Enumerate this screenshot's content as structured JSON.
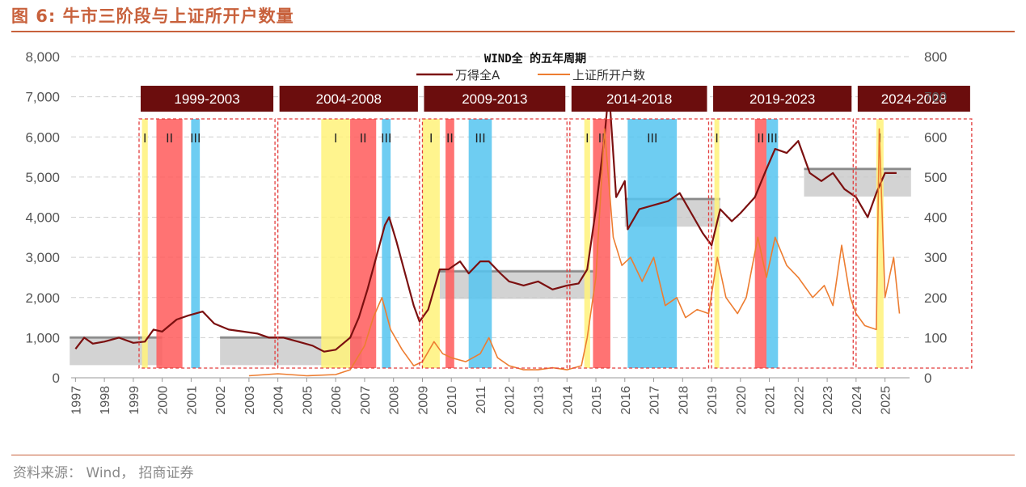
{
  "header": {
    "title": "图 6: 牛市三阶段与上证所开户数量",
    "source": "资料来源： Wind， 招商证券"
  },
  "chart_data": {
    "type": "line",
    "title": "WIND全 的五年周期",
    "y_left": {
      "ylim": [
        0,
        8000
      ],
      "ticks": [
        "0",
        "1,000",
        "2,000",
        "3,000",
        "4,000",
        "5,000",
        "6,000",
        "7,000",
        "8,000"
      ]
    },
    "y_right": {
      "ylim": [
        0,
        800
      ],
      "ticks": [
        "0",
        "100",
        "200",
        "300",
        "400",
        "500",
        "600",
        "700",
        "800"
      ]
    },
    "x_ticks": [
      "1997",
      "1998",
      "1999",
      "2000",
      "2001",
      "2002",
      "2003",
      "2004",
      "2005",
      "2006",
      "2007",
      "2008",
      "2009",
      "2010",
      "2011",
      "2012",
      "2013",
      "2014",
      "2015",
      "2016",
      "2017",
      "2018",
      "2019",
      "2020",
      "2021",
      "2022",
      "2023",
      "2024",
      "2025"
    ],
    "legend_position": "top-center",
    "series": [
      {
        "name": "万得全A",
        "axis": "left",
        "color": "#7b1010",
        "points": [
          [
            1997.0,
            720
          ],
          [
            1997.3,
            1000
          ],
          [
            1997.6,
            850
          ],
          [
            1998.0,
            900
          ],
          [
            1998.5,
            1000
          ],
          [
            1999.0,
            870
          ],
          [
            1999.4,
            900
          ],
          [
            1999.7,
            1200
          ],
          [
            2000.0,
            1150
          ],
          [
            2000.5,
            1450
          ],
          [
            2000.9,
            1550
          ],
          [
            2001.4,
            1650
          ],
          [
            2001.8,
            1350
          ],
          [
            2002.3,
            1200
          ],
          [
            2002.8,
            1150
          ],
          [
            2003.3,
            1100
          ],
          [
            2003.7,
            1000
          ],
          [
            2004.2,
            1000
          ],
          [
            2004.7,
            900
          ],
          [
            2005.2,
            800
          ],
          [
            2005.6,
            650
          ],
          [
            2006.0,
            700
          ],
          [
            2006.5,
            1000
          ],
          [
            2006.8,
            1500
          ],
          [
            2007.1,
            2200
          ],
          [
            2007.4,
            3000
          ],
          [
            2007.7,
            3800
          ],
          [
            2007.85,
            4000
          ],
          [
            2008.1,
            3400
          ],
          [
            2008.4,
            2600
          ],
          [
            2008.7,
            1800
          ],
          [
            2008.9,
            1400
          ],
          [
            2009.2,
            1700
          ],
          [
            2009.6,
            2700
          ],
          [
            2009.9,
            2700
          ],
          [
            2010.3,
            2900
          ],
          [
            2010.6,
            2600
          ],
          [
            2011.0,
            2900
          ],
          [
            2011.3,
            2900
          ],
          [
            2011.7,
            2600
          ],
          [
            2012.0,
            2400
          ],
          [
            2012.5,
            2300
          ],
          [
            2013.0,
            2400
          ],
          [
            2013.5,
            2200
          ],
          [
            2014.0,
            2300
          ],
          [
            2014.4,
            2350
          ],
          [
            2014.7,
            2700
          ],
          [
            2015.0,
            4200
          ],
          [
            2015.3,
            6000
          ],
          [
            2015.45,
            7200
          ],
          [
            2015.7,
            4500
          ],
          [
            2016.0,
            4900
          ],
          [
            2016.1,
            3700
          ],
          [
            2016.5,
            4200
          ],
          [
            2017.0,
            4300
          ],
          [
            2017.5,
            4400
          ],
          [
            2017.9,
            4600
          ],
          [
            2018.3,
            4100
          ],
          [
            2018.7,
            3600
          ],
          [
            2019.0,
            3300
          ],
          [
            2019.3,
            4200
          ],
          [
            2019.7,
            3900
          ],
          [
            2020.0,
            4100
          ],
          [
            2020.5,
            4500
          ],
          [
            2020.9,
            5200
          ],
          [
            2021.2,
            5700
          ],
          [
            2021.6,
            5600
          ],
          [
            2022.0,
            5900
          ],
          [
            2022.4,
            5100
          ],
          [
            2022.8,
            4900
          ],
          [
            2023.2,
            5100
          ],
          [
            2023.6,
            4700
          ],
          [
            2024.0,
            4500
          ],
          [
            2024.4,
            4000
          ],
          [
            2024.7,
            4600
          ],
          [
            2025.0,
            5100
          ],
          [
            2025.4,
            5100
          ]
        ]
      },
      {
        "name": "上证所开户数",
        "axis": "right",
        "color": "#ed7d31",
        "points": [
          [
            2003.0,
            5
          ],
          [
            2004.0,
            10
          ],
          [
            2005.0,
            5
          ],
          [
            2006.0,
            8
          ],
          [
            2006.5,
            20
          ],
          [
            2007.0,
            80
          ],
          [
            2007.3,
            150
          ],
          [
            2007.6,
            200
          ],
          [
            2007.9,
            120
          ],
          [
            2008.3,
            70
          ],
          [
            2008.7,
            30
          ],
          [
            2009.0,
            40
          ],
          [
            2009.4,
            90
          ],
          [
            2009.7,
            60
          ],
          [
            2010.0,
            50
          ],
          [
            2010.5,
            40
          ],
          [
            2011.0,
            60
          ],
          [
            2011.3,
            100
          ],
          [
            2011.6,
            50
          ],
          [
            2012.0,
            30
          ],
          [
            2012.5,
            20
          ],
          [
            2013.0,
            20
          ],
          [
            2013.5,
            25
          ],
          [
            2014.0,
            20
          ],
          [
            2014.5,
            30
          ],
          [
            2014.7,
            100
          ],
          [
            2015.0,
            250
          ],
          [
            2015.3,
            620
          ],
          [
            2015.6,
            350
          ],
          [
            2015.9,
            280
          ],
          [
            2016.2,
            300
          ],
          [
            2016.6,
            240
          ],
          [
            2017.0,
            300
          ],
          [
            2017.4,
            180
          ],
          [
            2017.8,
            200
          ],
          [
            2018.1,
            150
          ],
          [
            2018.5,
            170
          ],
          [
            2018.9,
            160
          ],
          [
            2019.2,
            300
          ],
          [
            2019.5,
            200
          ],
          [
            2019.9,
            160
          ],
          [
            2020.2,
            200
          ],
          [
            2020.6,
            350
          ],
          [
            2020.9,
            250
          ],
          [
            2021.2,
            350
          ],
          [
            2021.6,
            280
          ],
          [
            2022.0,
            250
          ],
          [
            2022.5,
            200
          ],
          [
            2022.9,
            230
          ],
          [
            2023.2,
            180
          ],
          [
            2023.5,
            330
          ],
          [
            2023.8,
            200
          ],
          [
            2024.0,
            160
          ],
          [
            2024.3,
            130
          ],
          [
            2024.7,
            120
          ],
          [
            2024.8,
            620
          ],
          [
            2025.0,
            200
          ],
          [
            2025.3,
            300
          ],
          [
            2025.5,
            160
          ]
        ]
      }
    ],
    "cycles": [
      {
        "label": "1999-2003",
        "x0": 1999.0,
        "x1": 2003.9
      },
      {
        "label": "2004-2008",
        "x0": 2004.0,
        "x1": 2008.9
      },
      {
        "label": "2009-2013",
        "x0": 2009.0,
        "x1": 2014.0
      },
      {
        "label": "2014-2018",
        "x0": 2014.1,
        "x1": 2018.9
      },
      {
        "label": "2019-2023",
        "x0": 2019.0,
        "x1": 2023.9
      },
      {
        "label": "2024-2028",
        "x0": 2024.0,
        "x1": 2028.0
      }
    ],
    "phases": [
      {
        "label": "I",
        "color": "#fff27a",
        "x0": 1999.3,
        "x1": 1999.5
      },
      {
        "label": "II",
        "color": "#ff5a5a",
        "x0": 1999.8,
        "x1": 2000.7
      },
      {
        "label": "III",
        "color": "#55c4f0",
        "x0": 2001.0,
        "x1": 2001.3
      },
      {
        "label": "I",
        "color": "#fff27a",
        "x0": 2005.5,
        "x1": 2006.5
      },
      {
        "label": "II",
        "color": "#ff5a5a",
        "x0": 2006.5,
        "x1": 2007.4
      },
      {
        "label": "III",
        "color": "#55c4f0",
        "x0": 2007.6,
        "x1": 2007.9
      },
      {
        "label": "I",
        "color": "#fff27a",
        "x0": 2009.0,
        "x1": 2009.6
      },
      {
        "label": "II",
        "color": "#ff5a5a",
        "x0": 2009.8,
        "x1": 2010.1
      },
      {
        "label": "III",
        "color": "#55c4f0",
        "x0": 2010.6,
        "x1": 2011.4
      },
      {
        "label": "I",
        "color": "#fff27a",
        "x0": 2014.6,
        "x1": 2014.8
      },
      {
        "label": "II",
        "color": "#ff5a5a",
        "x0": 2014.9,
        "x1": 2015.5
      },
      {
        "label": "III",
        "color": "#55c4f0",
        "x0": 2016.1,
        "x1": 2017.8
      },
      {
        "label": "I",
        "color": "#fff27a",
        "x0": 2019.1,
        "x1": 2019.25
      },
      {
        "label": "II",
        "color": "#ff5a5a",
        "x0": 2020.5,
        "x1": 2020.9
      },
      {
        "label": "III",
        "color": "#55c4f0",
        "x0": 2020.9,
        "x1": 2021.3
      },
      {
        "label": "I",
        "color": "#fff27a",
        "x0": 2024.7,
        "x1": 2024.95
      }
    ],
    "plateaus": [
      {
        "x0": 1996.8,
        "x1": 2000.0,
        "y": 1000
      },
      {
        "x0": 2002.0,
        "x1": 2006.9,
        "y": 1000
      },
      {
        "x0": 2009.6,
        "x1": 2014.9,
        "y": 2650
      },
      {
        "x0": 2016.0,
        "x1": 2019.3,
        "y": 4450
      },
      {
        "x0": 2022.2,
        "x1": 2025.9,
        "y": 5200
      }
    ]
  }
}
